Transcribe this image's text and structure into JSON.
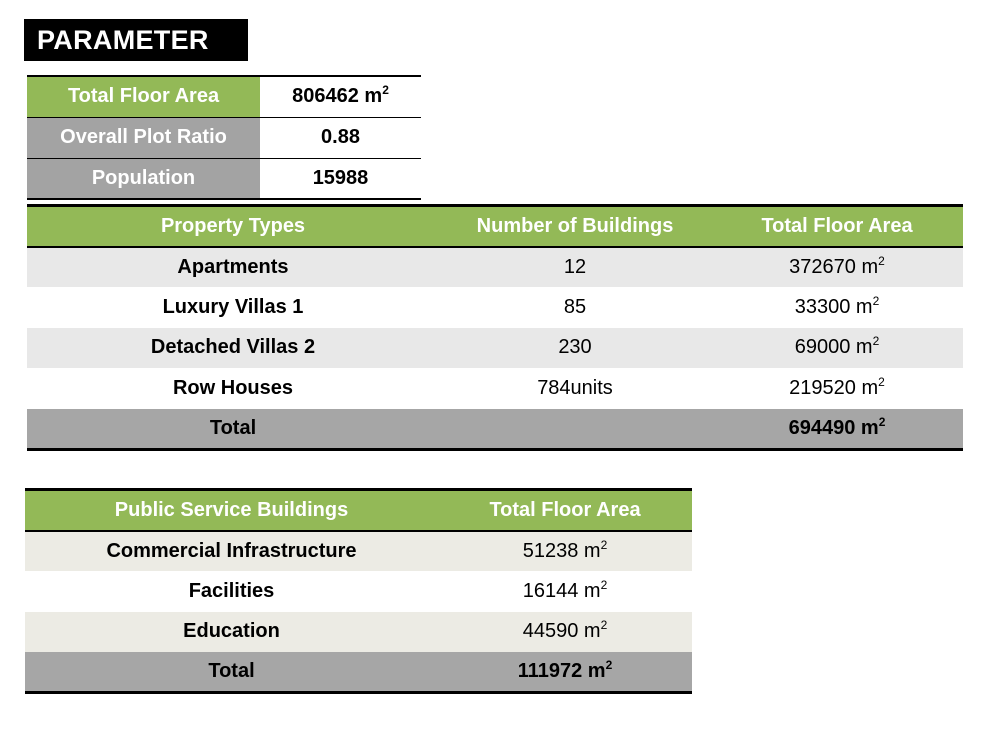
{
  "title": "PARAMETER",
  "unit": "m",
  "unit_exp": "2",
  "parameters": [
    {
      "label": "Total Floor Area",
      "value": "806462 m",
      "has_unit": true
    },
    {
      "label": "Overall Plot Ratio",
      "value": "0.88",
      "has_unit": false
    },
    {
      "label": "Population",
      "value": "15988",
      "has_unit": false
    }
  ],
  "property_table": {
    "headers": [
      "Property Types",
      "Number of Buildings",
      "Total Floor Area"
    ],
    "rows": [
      {
        "type": "Apartments",
        "buildings": "12",
        "area": "372670 m"
      },
      {
        "type": "Luxury Villas 1",
        "buildings": "85",
        "area": "33300 m"
      },
      {
        "type": "Detached Villas 2",
        "buildings": "230",
        "area": "69000 m"
      },
      {
        "type": "Row Houses",
        "buildings": "784units",
        "area": "219520 m"
      }
    ],
    "total": {
      "label": "Total",
      "buildings": "",
      "area": "694490 m"
    }
  },
  "public_table": {
    "headers": [
      "Public Service Buildings",
      "Total Floor Area"
    ],
    "rows": [
      {
        "type": "Commercial Infrastructure",
        "area": "51238 m"
      },
      {
        "type": "Facilities",
        "area": "16144 m"
      },
      {
        "type": "Education",
        "area": "44590 m"
      }
    ],
    "total": {
      "label": "Total",
      "area": "111972 m"
    }
  }
}
